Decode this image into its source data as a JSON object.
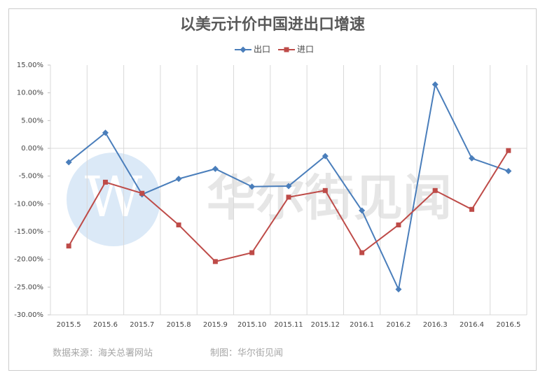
{
  "chart_data": {
    "type": "line",
    "title": "以美元计价中国进出口增速",
    "categories": [
      "2015.5",
      "2015.6",
      "2015.7",
      "2015.8",
      "2015.9",
      "2015.10",
      "2015.11",
      "2015.12",
      "2016.1",
      "2016.2",
      "2016.3",
      "2016.4",
      "2016.5"
    ],
    "series": [
      {
        "name": "出口",
        "color": "#4a7ebb",
        "marker": "diamond",
        "values": [
          -2.5,
          2.8,
          -8.3,
          -5.5,
          -3.7,
          -6.9,
          -6.8,
          -1.4,
          -11.2,
          -25.4,
          11.5,
          -1.8,
          -4.1
        ]
      },
      {
        "name": "进口",
        "color": "#be4b48",
        "marker": "square",
        "values": [
          -17.6,
          -6.1,
          -8.1,
          -13.8,
          -20.4,
          -18.8,
          -8.8,
          -7.6,
          -18.8,
          -13.8,
          -7.6,
          -11.0,
          -0.4
        ]
      }
    ],
    "ylim": [
      -30,
      15
    ],
    "yticks": [
      {
        "value": 15,
        "label": "15.00%"
      },
      {
        "value": 10,
        "label": "10.00%"
      },
      {
        "value": 5,
        "label": "5.00%"
      },
      {
        "value": 0,
        "label": "0.00%"
      },
      {
        "value": -5,
        "label": "-5.00%"
      },
      {
        "value": -10,
        "label": "-10.00%"
      },
      {
        "value": -15,
        "label": "-15.00%"
      },
      {
        "value": -20,
        "label": "-20.00%"
      },
      {
        "value": -25,
        "label": "-25.00%"
      },
      {
        "value": -30,
        "label": "-30.00%"
      }
    ],
    "legend": "top",
    "watermark": "华尔街见闻",
    "source": "数据来源：海关总署网站",
    "credit": "制图：华尔街见闻"
  }
}
